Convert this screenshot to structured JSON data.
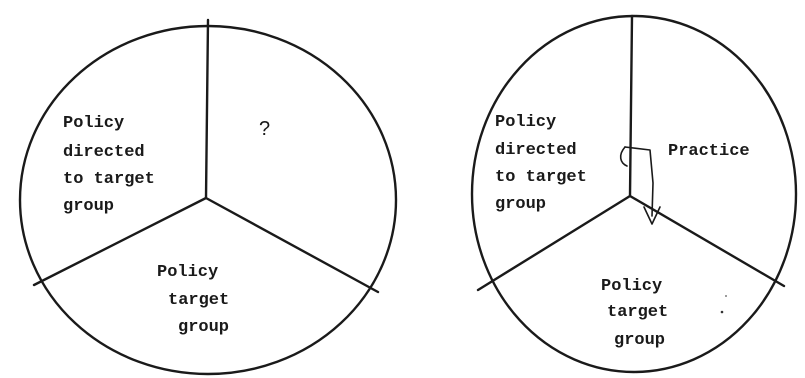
{
  "diagrams": [
    {
      "segments": [
        {
          "lines": [
            "Policy",
            "directed",
            "to target",
            "group"
          ]
        },
        {
          "lines": [
            "?"
          ]
        },
        {
          "lines": [
            "Policy",
            "target",
            "group"
          ]
        }
      ]
    },
    {
      "segments": [
        {
          "lines": [
            "Policy",
            "directed",
            "to target",
            "group"
          ]
        },
        {
          "lines": [
            "Practice"
          ]
        },
        {
          "lines": [
            "Policy",
            "target",
            "group"
          ]
        }
      ]
    }
  ]
}
